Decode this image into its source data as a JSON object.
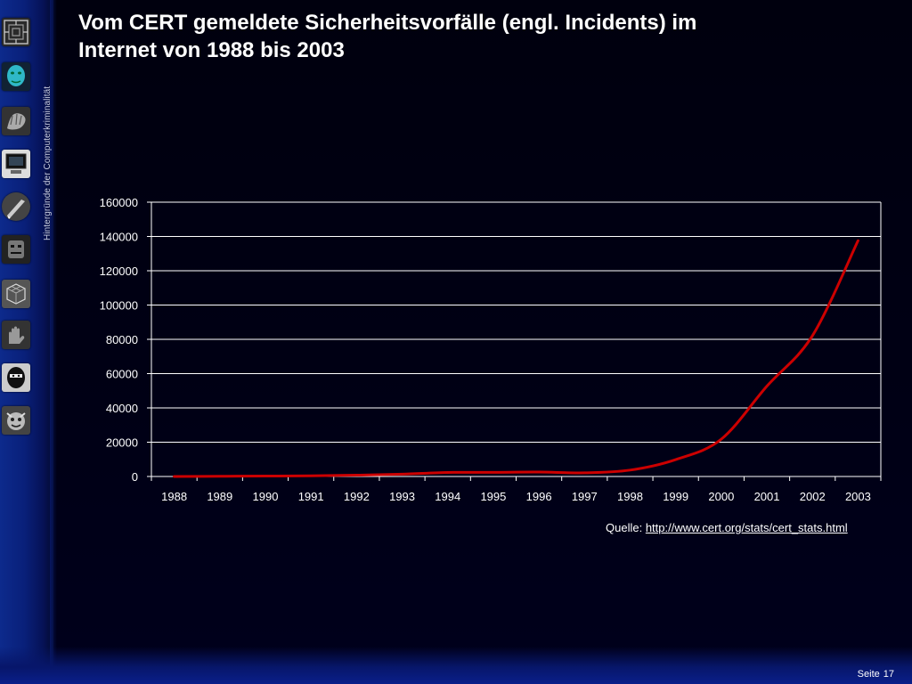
{
  "slide": {
    "title_line1": "Vom CERT gemeldete Sicherheitsvorfälle (engl. Incidents) im",
    "title_line2": "Internet von 1988 bis 2003",
    "side_caption": "Hintergründe der Computerkriminalität",
    "source_label": "Quelle:",
    "source_link": "http://www.cert.org/stats/cert_stats.html",
    "page_label": "Seite",
    "page_number": "17"
  },
  "icons": [
    "circuit-icon",
    "face-icon",
    "hand-icon",
    "computer-icon",
    "knife-icon",
    "robot-face-icon",
    "cube-wireframe-icon",
    "hand-grab-icon",
    "masked-face-icon",
    "clown-face-icon"
  ],
  "colors": {
    "background": "#000010",
    "sidebar": "#0a1f8a",
    "line": "#cc0000",
    "text": "#ffffff"
  },
  "chart_data": {
    "type": "line",
    "title": "",
    "xlabel": "",
    "ylabel": "",
    "categories": [
      "1988",
      "1989",
      "1990",
      "1991",
      "1992",
      "1993",
      "1994",
      "1995",
      "1996",
      "1997",
      "1998",
      "1999",
      "2000",
      "2001",
      "2002",
      "2003"
    ],
    "series": [
      {
        "values": [
          6,
          132,
          252,
          406,
          773,
          1334,
          2340,
          2412,
          2573,
          2134,
          3734,
          9859,
          21756,
          52658,
          82094,
          137529
        ],
        "color": "#cc0000"
      }
    ],
    "ylim": [
      0,
      160000
    ],
    "yticks": [
      0,
      20000,
      40000,
      60000,
      80000,
      100000,
      120000,
      140000,
      160000
    ],
    "grid": true,
    "legend": "none"
  }
}
